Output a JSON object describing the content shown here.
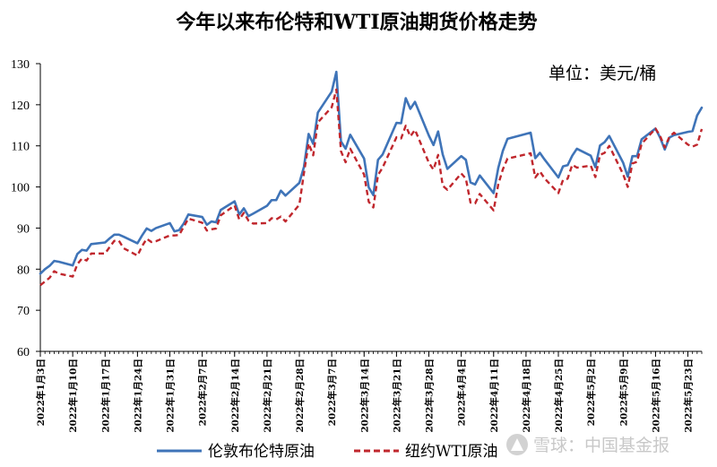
{
  "chart_data": {
    "type": "line",
    "title": "今年以来布伦特和WTI原油期货价格走势",
    "unit_label": "单位：美元/桶",
    "ylim": [
      60,
      130
    ],
    "yticks": [
      60,
      70,
      80,
      90,
      100,
      110,
      120,
      130
    ],
    "xlim": [
      "2022-01-03",
      "2022-05-26"
    ],
    "xtick_dates": [
      "2022-01-03",
      "2022-01-10",
      "2022-01-17",
      "2022-01-24",
      "2022-01-31",
      "2022-02-07",
      "2022-02-14",
      "2022-02-21",
      "2022-02-28",
      "2022-03-07",
      "2022-03-14",
      "2022-03-21",
      "2022-03-28",
      "2022-04-04",
      "2022-04-11",
      "2022-04-18",
      "2022-04-25",
      "2022-05-02",
      "2022-05-09",
      "2022-05-16",
      "2022-05-23"
    ],
    "xtick_labels": [
      "2022年1月3日",
      "2022年1月10日",
      "2022年1月17日",
      "2022年1月24日",
      "2022年1月31日",
      "2022年2月7日",
      "2022年2月14日",
      "2022年2月21日",
      "2022年2月28日",
      "2022年3月7日",
      "2022年3月14日",
      "2022年3月21日",
      "2022年3月28日",
      "2022年4月4日",
      "2022年4月11日",
      "2022年4月18日",
      "2022年4月25日",
      "2022年5月2日",
      "2022年5月9日",
      "2022年5月16日",
      "2022年5月23日"
    ],
    "legend_position": "bottom",
    "grid": false,
    "series": [
      {
        "name": "伦敦布伦特原油",
        "color": "#3f74b8",
        "style": "solid",
        "points": [
          [
            "2022-01-03",
            78.9
          ],
          [
            "2022-01-04",
            80.0
          ],
          [
            "2022-01-05",
            80.8
          ],
          [
            "2022-01-06",
            82.0
          ],
          [
            "2022-01-07",
            81.8
          ],
          [
            "2022-01-10",
            80.9
          ],
          [
            "2022-01-11",
            83.7
          ],
          [
            "2022-01-12",
            84.7
          ],
          [
            "2022-01-13",
            84.5
          ],
          [
            "2022-01-14",
            86.1
          ],
          [
            "2022-01-17",
            86.5
          ],
          [
            "2022-01-18",
            87.5
          ],
          [
            "2022-01-19",
            88.4
          ],
          [
            "2022-01-20",
            88.4
          ],
          [
            "2022-01-21",
            87.9
          ],
          [
            "2022-01-24",
            86.3
          ],
          [
            "2022-01-25",
            88.2
          ],
          [
            "2022-01-26",
            89.9
          ],
          [
            "2022-01-27",
            89.3
          ],
          [
            "2022-01-28",
            90.0
          ],
          [
            "2022-01-31",
            91.2
          ],
          [
            "2022-02-01",
            89.2
          ],
          [
            "2022-02-02",
            89.5
          ],
          [
            "2022-02-03",
            91.1
          ],
          [
            "2022-02-04",
            93.3
          ],
          [
            "2022-02-07",
            92.7
          ],
          [
            "2022-02-08",
            90.8
          ],
          [
            "2022-02-09",
            91.6
          ],
          [
            "2022-02-10",
            91.4
          ],
          [
            "2022-02-11",
            94.4
          ],
          [
            "2022-02-14",
            96.5
          ],
          [
            "2022-02-15",
            93.3
          ],
          [
            "2022-02-16",
            94.8
          ],
          [
            "2022-02-17",
            92.9
          ],
          [
            "2022-02-18",
            93.5
          ],
          [
            "2022-02-21",
            95.4
          ],
          [
            "2022-02-22",
            96.8
          ],
          [
            "2022-02-23",
            96.8
          ],
          [
            "2022-02-24",
            99.1
          ],
          [
            "2022-02-25",
            97.9
          ],
          [
            "2022-02-28",
            101.0
          ],
          [
            "2022-03-01",
            104.9
          ],
          [
            "2022-03-02",
            112.9
          ],
          [
            "2022-03-03",
            110.5
          ],
          [
            "2022-03-04",
            118.1
          ],
          [
            "2022-03-07",
            123.2
          ],
          [
            "2022-03-08",
            128.0
          ],
          [
            "2022-03-09",
            111.1
          ],
          [
            "2022-03-10",
            109.3
          ],
          [
            "2022-03-11",
            112.7
          ],
          [
            "2022-03-14",
            106.9
          ],
          [
            "2022-03-15",
            99.9
          ],
          [
            "2022-03-16",
            98.0
          ],
          [
            "2022-03-17",
            106.6
          ],
          [
            "2022-03-18",
            107.9
          ],
          [
            "2022-03-21",
            115.6
          ],
          [
            "2022-03-22",
            115.5
          ],
          [
            "2022-03-23",
            121.6
          ],
          [
            "2022-03-24",
            119.0
          ],
          [
            "2022-03-25",
            120.7
          ],
          [
            "2022-03-28",
            112.5
          ],
          [
            "2022-03-29",
            110.2
          ],
          [
            "2022-03-30",
            113.5
          ],
          [
            "2022-03-31",
            107.9
          ],
          [
            "2022-04-01",
            104.4
          ],
          [
            "2022-04-04",
            107.5
          ],
          [
            "2022-04-05",
            106.6
          ],
          [
            "2022-04-06",
            101.1
          ],
          [
            "2022-04-07",
            100.6
          ],
          [
            "2022-04-08",
            102.8
          ],
          [
            "2022-04-11",
            98.5
          ],
          [
            "2022-04-12",
            104.6
          ],
          [
            "2022-04-13",
            108.8
          ],
          [
            "2022-04-14",
            111.7
          ],
          [
            "2022-04-19",
            113.2
          ],
          [
            "2022-04-20",
            107.0
          ],
          [
            "2022-04-21",
            108.3
          ],
          [
            "2022-04-22",
            106.7
          ],
          [
            "2022-04-25",
            102.3
          ],
          [
            "2022-04-26",
            105.0
          ],
          [
            "2022-04-27",
            105.3
          ],
          [
            "2022-04-28",
            107.6
          ],
          [
            "2022-04-29",
            109.3
          ],
          [
            "2022-05-02",
            107.6
          ],
          [
            "2022-05-03",
            104.8
          ],
          [
            "2022-05-04",
            110.1
          ],
          [
            "2022-05-05",
            110.9
          ],
          [
            "2022-05-06",
            112.4
          ],
          [
            "2022-05-09",
            105.9
          ],
          [
            "2022-05-10",
            102.5
          ],
          [
            "2022-05-11",
            107.5
          ],
          [
            "2022-05-12",
            107.5
          ],
          [
            "2022-05-13",
            111.6
          ],
          [
            "2022-05-16",
            114.2
          ],
          [
            "2022-05-17",
            112.0
          ],
          [
            "2022-05-18",
            109.1
          ],
          [
            "2022-05-19",
            112.0
          ],
          [
            "2022-05-20",
            112.6
          ],
          [
            "2022-05-23",
            113.4
          ],
          [
            "2022-05-24",
            113.6
          ],
          [
            "2022-05-25",
            117.4
          ],
          [
            "2022-05-26",
            119.3
          ]
        ]
      },
      {
        "name": "纽约WTI原油",
        "color": "#c0272d",
        "style": "dashed",
        "points": [
          [
            "2022-01-03",
            76.1
          ],
          [
            "2022-01-04",
            77.0
          ],
          [
            "2022-01-05",
            77.9
          ],
          [
            "2022-01-06",
            79.5
          ],
          [
            "2022-01-07",
            78.9
          ],
          [
            "2022-01-10",
            78.2
          ],
          [
            "2022-01-11",
            81.2
          ],
          [
            "2022-01-12",
            82.6
          ],
          [
            "2022-01-13",
            82.1
          ],
          [
            "2022-01-14",
            83.8
          ],
          [
            "2022-01-17",
            83.8
          ],
          [
            "2022-01-18",
            85.4
          ],
          [
            "2022-01-19",
            86.9
          ],
          [
            "2022-01-20",
            86.9
          ],
          [
            "2022-01-21",
            85.1
          ],
          [
            "2022-01-24",
            83.3
          ],
          [
            "2022-01-25",
            85.6
          ],
          [
            "2022-01-26",
            87.4
          ],
          [
            "2022-01-27",
            86.6
          ],
          [
            "2022-01-28",
            86.8
          ],
          [
            "2022-01-31",
            88.2
          ],
          [
            "2022-02-01",
            88.2
          ],
          [
            "2022-02-02",
            88.3
          ],
          [
            "2022-02-03",
            90.3
          ],
          [
            "2022-02-04",
            92.3
          ],
          [
            "2022-02-07",
            91.3
          ],
          [
            "2022-02-08",
            89.4
          ],
          [
            "2022-02-09",
            89.7
          ],
          [
            "2022-02-10",
            89.9
          ],
          [
            "2022-02-11",
            93.1
          ],
          [
            "2022-02-14",
            95.5
          ],
          [
            "2022-02-15",
            92.1
          ],
          [
            "2022-02-16",
            93.7
          ],
          [
            "2022-02-17",
            91.8
          ],
          [
            "2022-02-18",
            91.1
          ],
          [
            "2022-02-21",
            91.2
          ],
          [
            "2022-02-22",
            92.4
          ],
          [
            "2022-02-23",
            92.1
          ],
          [
            "2022-02-24",
            92.8
          ],
          [
            "2022-02-25",
            91.6
          ],
          [
            "2022-02-28",
            95.7
          ],
          [
            "2022-03-01",
            103.4
          ],
          [
            "2022-03-02",
            110.6
          ],
          [
            "2022-03-03",
            107.7
          ],
          [
            "2022-03-04",
            115.7
          ],
          [
            "2022-03-07",
            119.4
          ],
          [
            "2022-03-08",
            123.7
          ],
          [
            "2022-03-09",
            108.7
          ],
          [
            "2022-03-10",
            106.0
          ],
          [
            "2022-03-11",
            109.3
          ],
          [
            "2022-03-14",
            103.0
          ],
          [
            "2022-03-15",
            96.4
          ],
          [
            "2022-03-16",
            95.0
          ],
          [
            "2022-03-17",
            102.9
          ],
          [
            "2022-03-18",
            104.7
          ],
          [
            "2022-03-21",
            112.1
          ],
          [
            "2022-03-22",
            111.8
          ],
          [
            "2022-03-23",
            114.9
          ],
          [
            "2022-03-24",
            112.3
          ],
          [
            "2022-03-25",
            113.9
          ],
          [
            "2022-03-28",
            105.9
          ],
          [
            "2022-03-29",
            104.2
          ],
          [
            "2022-03-30",
            107.8
          ],
          [
            "2022-03-31",
            100.3
          ],
          [
            "2022-04-01",
            99.3
          ],
          [
            "2022-04-04",
            103.3
          ],
          [
            "2022-04-05",
            102.0
          ],
          [
            "2022-04-06",
            96.2
          ],
          [
            "2022-04-07",
            96.0
          ],
          [
            "2022-04-08",
            98.3
          ],
          [
            "2022-04-11",
            94.3
          ],
          [
            "2022-04-12",
            100.6
          ],
          [
            "2022-04-13",
            104.3
          ],
          [
            "2022-04-14",
            106.9
          ],
          [
            "2022-04-19",
            108.2
          ],
          [
            "2022-04-20",
            102.3
          ],
          [
            "2022-04-21",
            103.8
          ],
          [
            "2022-04-22",
            102.1
          ],
          [
            "2022-04-25",
            98.5
          ],
          [
            "2022-04-26",
            101.7
          ],
          [
            "2022-04-27",
            102.0
          ],
          [
            "2022-04-28",
            105.4
          ],
          [
            "2022-04-29",
            104.7
          ],
          [
            "2022-05-02",
            105.2
          ],
          [
            "2022-05-03",
            102.4
          ],
          [
            "2022-05-04",
            107.8
          ],
          [
            "2022-05-05",
            108.3
          ],
          [
            "2022-05-06",
            110.0
          ],
          [
            "2022-05-09",
            103.1
          ],
          [
            "2022-05-10",
            100.0
          ],
          [
            "2022-05-11",
            105.7
          ],
          [
            "2022-05-12",
            106.1
          ],
          [
            "2022-05-13",
            110.5
          ],
          [
            "2022-05-16",
            114.2
          ],
          [
            "2022-05-17",
            112.4
          ],
          [
            "2022-05-18",
            109.6
          ],
          [
            "2022-05-19",
            112.2
          ],
          [
            "2022-05-20",
            113.2
          ],
          [
            "2022-05-23",
            110.3
          ],
          [
            "2022-05-24",
            109.8
          ],
          [
            "2022-05-25",
            110.3
          ],
          [
            "2022-05-26",
            114.1
          ]
        ]
      }
    ]
  },
  "watermark": {
    "icon": "snowball-logo-icon",
    "text": "雪球：中国基金报"
  }
}
